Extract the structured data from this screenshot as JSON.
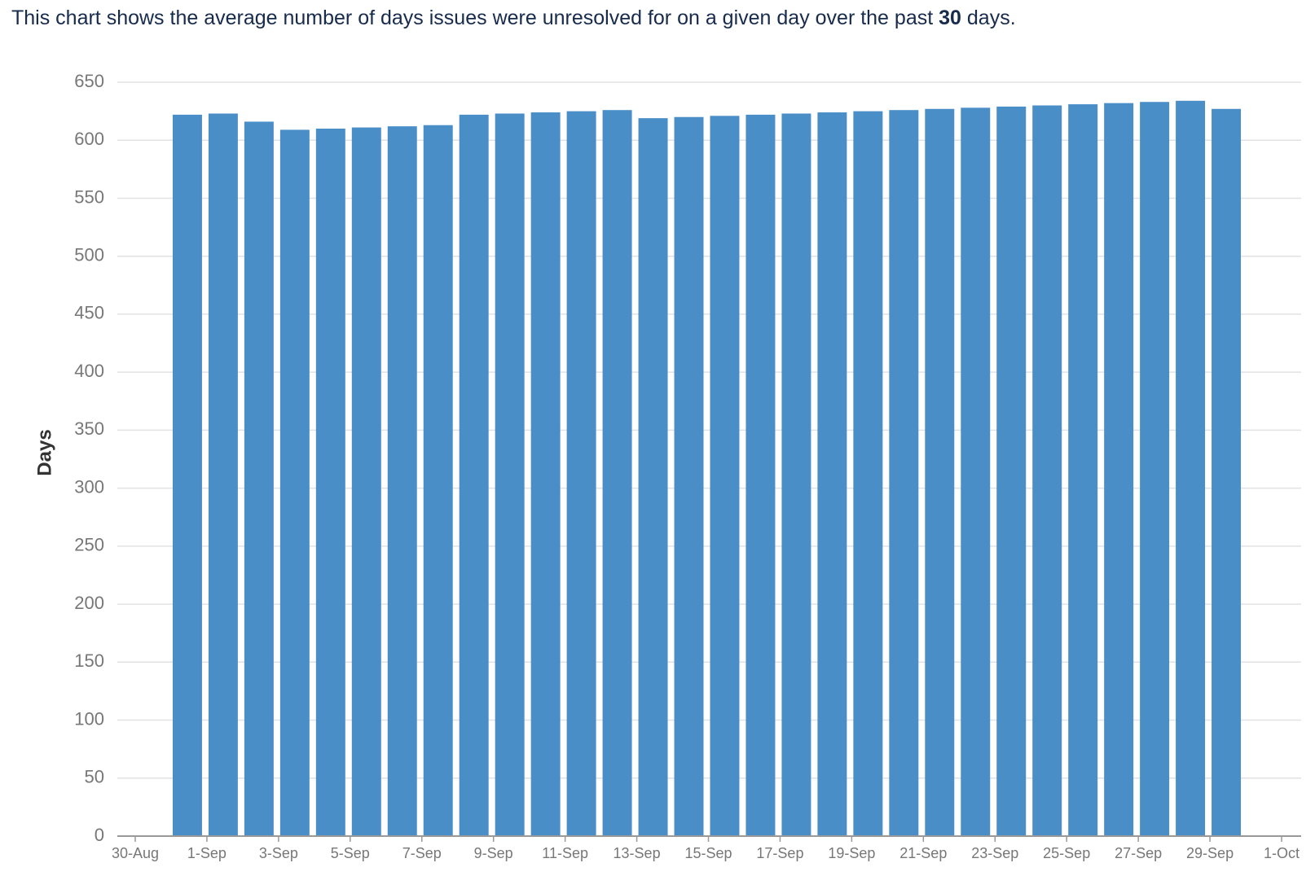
{
  "description": {
    "before": "This chart shows the average number of days issues were unresolved for on a given day over the past",
    "bold": "30",
    "after": "days."
  },
  "chart_data": {
    "type": "bar",
    "ylabel": "Days",
    "color": "#4a8ec8",
    "grid": true,
    "values": [
      622,
      623,
      616,
      609,
      610,
      611,
      612,
      613,
      622,
      623,
      624,
      625,
      626,
      619,
      620,
      621,
      622,
      623,
      624,
      625,
      626,
      627,
      628,
      629,
      630,
      631,
      632,
      633,
      634,
      627
    ],
    "xticks": [
      "30-Aug",
      "1-Sep",
      "3-Sep",
      "5-Sep",
      "7-Sep",
      "9-Sep",
      "11-Sep",
      "13-Sep",
      "15-Sep",
      "17-Sep",
      "19-Sep",
      "21-Sep",
      "23-Sep",
      "25-Sep",
      "27-Sep",
      "29-Sep",
      "1-Oct"
    ],
    "ylim": [
      0,
      650
    ],
    "yticks": [
      0,
      50,
      100,
      150,
      200,
      250,
      300,
      350,
      400,
      450,
      500,
      550,
      600,
      650
    ]
  }
}
